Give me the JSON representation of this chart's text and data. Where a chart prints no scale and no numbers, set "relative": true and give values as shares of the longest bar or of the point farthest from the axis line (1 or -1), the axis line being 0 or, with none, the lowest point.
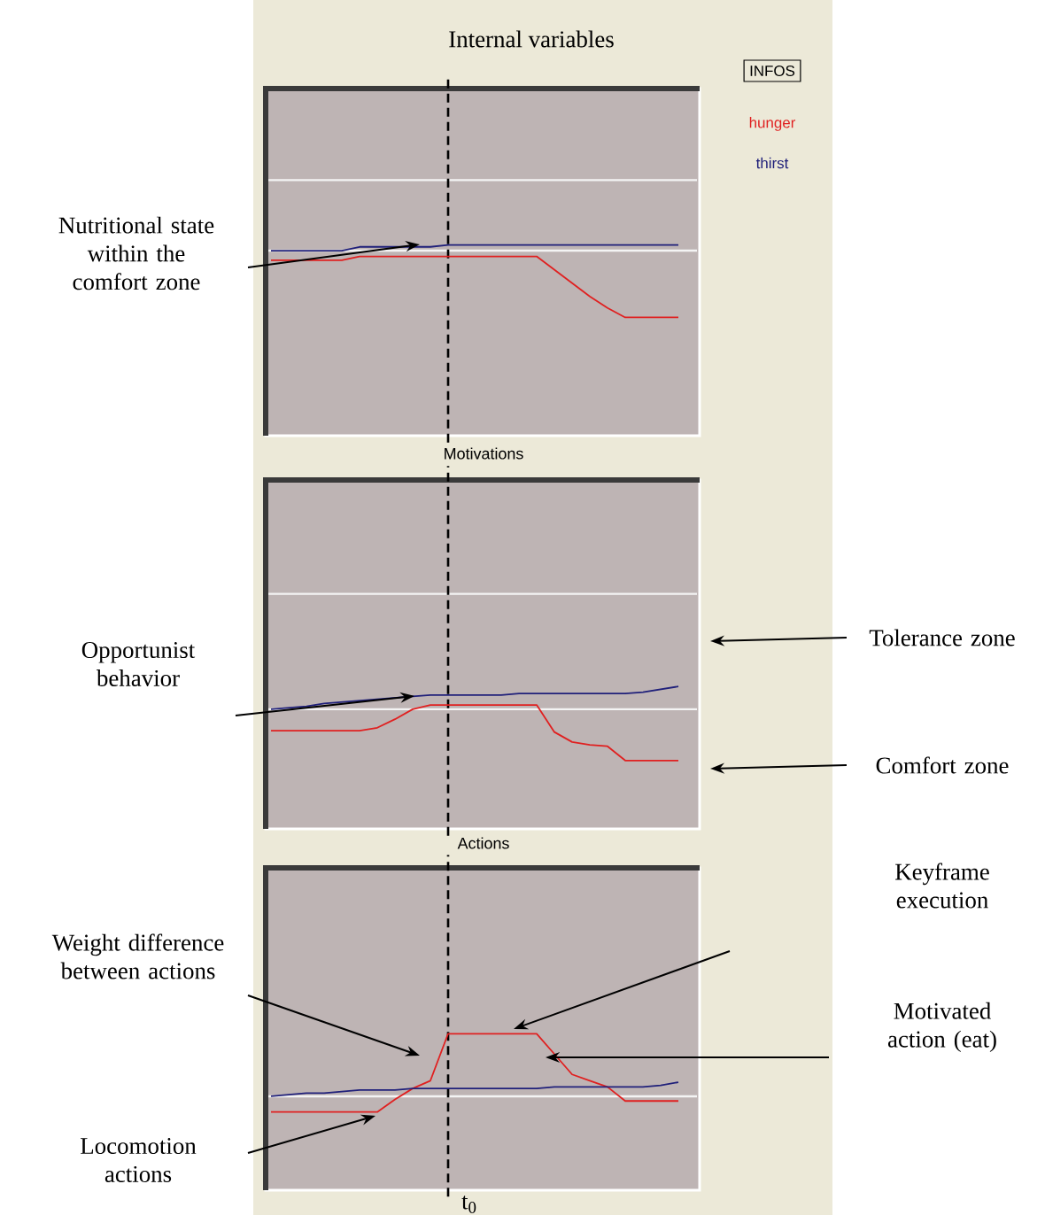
{
  "chart_data": [
    {
      "type": "line",
      "title": "Internal variables",
      "relative": true,
      "legend": "right",
      "categories": [
        null,
        null,
        null,
        null,
        null,
        null,
        null,
        null,
        null,
        null,
        null,
        null,
        null,
        null,
        null,
        null,
        null,
        null,
        null,
        null,
        null,
        null,
        null,
        null
      ],
      "series": [
        {
          "name": "hunger",
          "color": "#e02020",
          "values": [
            0.92,
            0.92,
            0.92,
            0.92,
            0.92,
            0.94,
            0.94,
            0.94,
            0.94,
            0.94,
            0.94,
            0.94,
            0.94,
            0.94,
            0.94,
            0.94,
            0.87,
            0.8,
            0.73,
            0.67,
            0.62,
            0.62,
            0.62,
            0.62
          ]
        },
        {
          "name": "thirst",
          "color": "#20207a",
          "values": [
            0.97,
            0.97,
            0.97,
            0.97,
            0.97,
            0.99,
            0.99,
            0.99,
            0.99,
            0.99,
            1,
            1,
            1,
            1,
            1,
            1,
            1,
            1,
            1,
            1,
            1,
            1,
            1,
            1
          ]
        }
      ],
      "ref_lines": [
        {
          "axis": "y",
          "value": 1.34,
          "color": "#f4f4f4"
        },
        {
          "axis": "y",
          "value": 0.97,
          "color": "#f4f4f4"
        }
      ],
      "annotations": [
        "Nutritional state within the comfort zone",
        "INFOS"
      ]
    },
    {
      "type": "line",
      "title": "Motivations",
      "relative": true,
      "categories": [
        null,
        null,
        null,
        null,
        null,
        null,
        null,
        null,
        null,
        null,
        null,
        null,
        null,
        null,
        null,
        null,
        null,
        null,
        null,
        null,
        null,
        null,
        null,
        null
      ],
      "series": [
        {
          "color": "#e02020",
          "values": [
            0.69,
            0.69,
            0.69,
            0.69,
            0.69,
            0.69,
            0.71,
            0.77,
            0.84,
            0.87,
            0.87,
            0.87,
            0.87,
            0.87,
            0.87,
            0.87,
            0.68,
            0.61,
            0.59,
            0.58,
            0.48,
            0.48,
            0.48,
            0.48
          ]
        },
        {
          "color": "#20207a",
          "values": [
            0.84,
            0.85,
            0.86,
            0.88,
            0.89,
            0.9,
            0.91,
            0.92,
            0.93,
            0.94,
            0.94,
            0.94,
            0.94,
            0.94,
            0.95,
            0.95,
            0.95,
            0.95,
            0.95,
            0.95,
            0.95,
            0.96,
            0.98,
            1
          ]
        }
      ],
      "ref_lines": [
        {
          "axis": "y",
          "value": 1.65,
          "color": "#f4f4f4"
        },
        {
          "axis": "y",
          "value": 0.84,
          "color": "#f4f4f4"
        }
      ],
      "annotations": [
        "Opportunist behavior",
        "Tolerance zone",
        "Comfort zone"
      ]
    },
    {
      "type": "line",
      "title": "Actions",
      "relative": true,
      "categories": [
        null,
        null,
        null,
        null,
        null,
        null,
        null,
        null,
        null,
        null,
        null,
        null,
        null,
        null,
        null,
        null,
        null,
        null,
        null,
        null,
        null,
        null,
        null,
        null
      ],
      "series": [
        {
          "color": "#e02020",
          "values": [
            0.5,
            0.5,
            0.5,
            0.5,
            0.5,
            0.5,
            0.5,
            0.58,
            0.65,
            0.7,
            1,
            1,
            1,
            1,
            1,
            1,
            0.87,
            0.74,
            0.7,
            0.66,
            0.57,
            0.57,
            0.57,
            0.57
          ]
        },
        {
          "color": "#20207a",
          "values": [
            0.6,
            0.61,
            0.62,
            0.62,
            0.63,
            0.64,
            0.64,
            0.64,
            0.65,
            0.65,
            0.65,
            0.65,
            0.65,
            0.65,
            0.65,
            0.65,
            0.66,
            0.66,
            0.66,
            0.66,
            0.66,
            0.66,
            0.67,
            0.69
          ]
        }
      ],
      "ref_lines": [
        {
          "axis": "y",
          "value": 0.6,
          "color": "#f4f4f4"
        }
      ],
      "annotations": [
        "Weight difference between actions",
        "Keyframe execution",
        "Motivated action (eat)",
        "Locomotion actions",
        "t$_{0}$"
      ]
    }
  ]
}
